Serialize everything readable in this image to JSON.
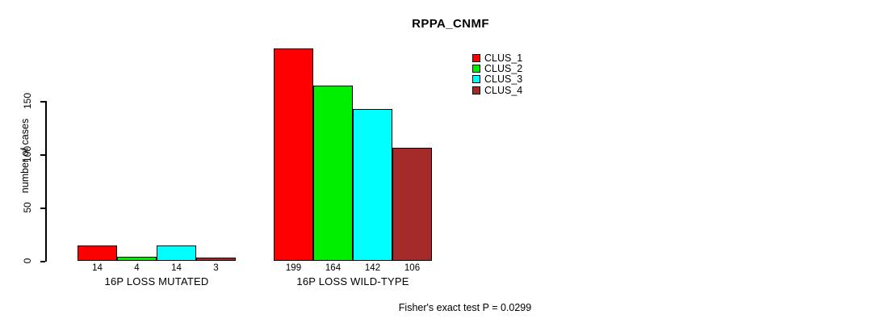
{
  "header": {
    "title": "RPPA_CNMF"
  },
  "footer": {
    "annotation": "Fisher's exact test P = 0.0299"
  },
  "chart_data": {
    "type": "bar",
    "title": "RPPA_CNMF",
    "xlabel": "",
    "ylabel": "number of cases",
    "ylim": [
      0,
      199
    ],
    "yticks": [
      0,
      50,
      100,
      150
    ],
    "grid": false,
    "legend_position": "top-right",
    "categories": [
      "16P LOSS MUTATED",
      "16P LOSS WILD-TYPE"
    ],
    "series": [
      {
        "name": "CLUS_1",
        "color": "#ff0000",
        "values": [
          14,
          199
        ]
      },
      {
        "name": "CLUS_2",
        "color": "#00ee00",
        "values": [
          4,
          164
        ]
      },
      {
        "name": "CLUS_3",
        "color": "#00ffff",
        "values": [
          14,
          142
        ]
      },
      {
        "name": "CLUS_4",
        "color": "#a52a2a",
        "values": [
          3,
          106
        ]
      }
    ],
    "annotation": "Fisher's exact test P = 0.0299",
    "axis_color": "#000000",
    "bar_border_color": "#000000",
    "background_color": "#ffffff"
  }
}
